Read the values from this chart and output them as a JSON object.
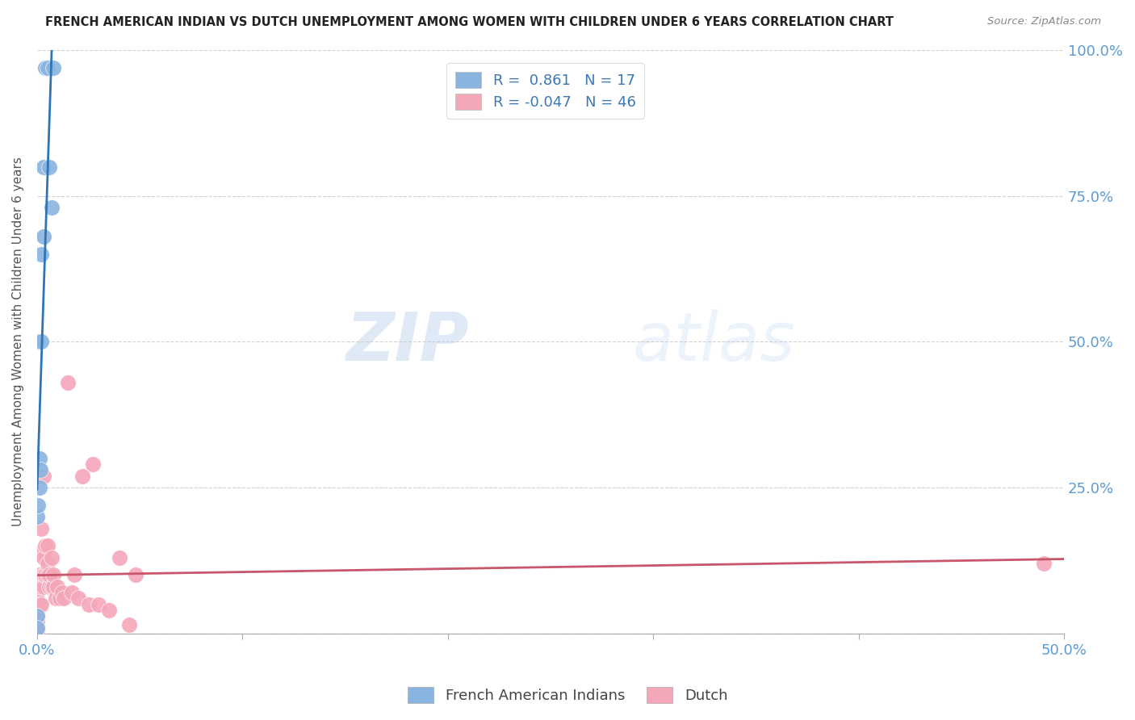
{
  "title": "FRENCH AMERICAN INDIAN VS DUTCH UNEMPLOYMENT AMONG WOMEN WITH CHILDREN UNDER 6 YEARS CORRELATION CHART",
  "source": "Source: ZipAtlas.com",
  "ylabel": "Unemployment Among Women with Children Under 6 years",
  "legend_label1": "French American Indians",
  "legend_label2": "Dutch",
  "r1": 0.861,
  "n1": 17,
  "r2": -0.047,
  "n2": 46,
  "color1": "#8ab4e0",
  "color2": "#f4a7b9",
  "line_color1": "#2e75b6",
  "line_color2": "#c9566b",
  "bg_color": "#ffffff",
  "watermark_zip": "ZIP",
  "watermark_atlas": "atlas",
  "xlim": [
    0,
    0.5
  ],
  "ylim": [
    0,
    1.0
  ],
  "french_x": [
    0.0,
    0.0,
    0.0,
    0.0,
    0.0005,
    0.001,
    0.001,
    0.0015,
    0.002,
    0.002,
    0.003,
    0.003,
    0.004,
    0.005,
    0.006,
    0.007,
    0.008
  ],
  "french_y": [
    0.03,
    0.01,
    0.2,
    0.5,
    0.22,
    0.25,
    0.3,
    0.28,
    0.5,
    0.65,
    0.68,
    0.8,
    0.97,
    0.97,
    0.8,
    0.73,
    0.97
  ],
  "dutch_x": [
    0.0,
    0.0,
    0.0,
    0.0,
    0.0,
    0.0,
    0.0,
    0.001,
    0.001,
    0.001,
    0.002,
    0.002,
    0.002,
    0.003,
    0.003,
    0.003,
    0.003,
    0.004,
    0.004,
    0.005,
    0.005,
    0.005,
    0.006,
    0.006,
    0.007,
    0.007,
    0.008,
    0.008,
    0.009,
    0.01,
    0.011,
    0.012,
    0.013,
    0.015,
    0.017,
    0.018,
    0.02,
    0.022,
    0.025,
    0.027,
    0.03,
    0.035,
    0.04,
    0.045,
    0.048,
    0.49
  ],
  "dutch_y": [
    0.0,
    0.01,
    0.02,
    0.03,
    0.04,
    0.05,
    0.07,
    0.05,
    0.1,
    0.14,
    0.05,
    0.08,
    0.18,
    0.08,
    0.1,
    0.13,
    0.27,
    0.1,
    0.15,
    0.1,
    0.12,
    0.15,
    0.08,
    0.1,
    0.08,
    0.13,
    0.08,
    0.1,
    0.06,
    0.08,
    0.06,
    0.07,
    0.06,
    0.43,
    0.07,
    0.1,
    0.06,
    0.27,
    0.05,
    0.29,
    0.05,
    0.04,
    0.13,
    0.015,
    0.1,
    0.12
  ]
}
